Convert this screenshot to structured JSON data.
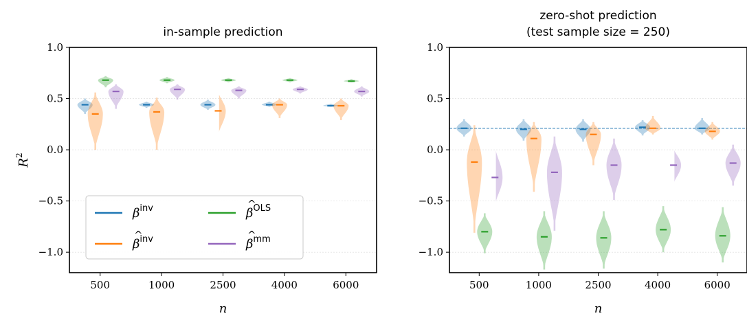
{
  "chart_data": [
    {
      "type": "violin",
      "title": "in-sample prediction",
      "subtitle": "",
      "xlabel": "n",
      "ylabel": "R",
      "ylabel_sup": "2",
      "ylim": [
        -1.2,
        1.0
      ],
      "yticks": [
        1.0,
        0.5,
        0.0,
        -0.5,
        -1.0
      ],
      "ytick_labels": [
        "1.0",
        "0.5",
        "0.0",
        "−0.5",
        "−1.0"
      ],
      "grid": true,
      "categories": [
        "500",
        "1000",
        "2500",
        "4000",
        "6000"
      ],
      "reference_line": null,
      "legend": {
        "placement": "lower-left",
        "entries": [
          {
            "series": 0,
            "base": "β",
            "hat": false,
            "sup": "inv"
          },
          {
            "series": 2,
            "base": "β",
            "hat": true,
            "sup": "OLS"
          },
          {
            "series": 1,
            "base": "β",
            "hat": true,
            "sup": "inv"
          },
          {
            "series": 3,
            "base": "β",
            "hat": true,
            "sup": "mm"
          }
        ]
      },
      "series": [
        {
          "color": "#1f77b4",
          "median": [
            0.44,
            0.44,
            0.44,
            0.44,
            0.43
          ],
          "min": [
            0.35,
            0.41,
            0.39,
            0.42,
            0.42
          ],
          "max": [
            0.5,
            0.47,
            0.49,
            0.47,
            0.45
          ]
        },
        {
          "color": "#ff7f0e",
          "median": [
            0.35,
            0.37,
            0.38,
            0.44,
            0.43
          ],
          "min": [
            0.0,
            0.0,
            0.14,
            0.31,
            0.29
          ],
          "max": [
            0.56,
            0.51,
            0.57,
            0.5,
            0.5
          ]
        },
        {
          "color": "#2ca02c",
          "median": [
            0.68,
            0.68,
            0.68,
            0.68,
            0.67
          ],
          "min": [
            0.61,
            0.65,
            0.66,
            0.66,
            0.66
          ],
          "max": [
            0.72,
            0.71,
            0.7,
            0.7,
            0.69
          ]
        },
        {
          "color": "#9467bd",
          "median": [
            0.57,
            0.59,
            0.58,
            0.59,
            0.57
          ],
          "min": [
            0.4,
            0.49,
            0.5,
            0.55,
            0.52
          ],
          "max": [
            0.64,
            0.64,
            0.62,
            0.62,
            0.62
          ]
        }
      ]
    },
    {
      "type": "violin",
      "title": "zero-shot prediction",
      "subtitle": "(test sample size = 250)",
      "xlabel": "n",
      "ylabel": "",
      "ylabel_sup": "",
      "ylim": [
        -1.2,
        1.0
      ],
      "yticks": [
        1.0,
        0.5,
        0.0,
        -0.5,
        -1.0
      ],
      "ytick_labels": [
        "1.0",
        "0.5",
        "0.0",
        "−0.5",
        "−1.0"
      ],
      "grid": true,
      "categories": [
        "500",
        "1000",
        "2500",
        "4000",
        "6000"
      ],
      "reference_line": {
        "y": 0.21,
        "color": "#1f77b4",
        "style": "dashed"
      },
      "legend": null,
      "series": [
        {
          "color": "#1f77b4",
          "median": [
            0.21,
            0.2,
            0.2,
            0.22,
            0.21
          ],
          "min": [
            0.13,
            0.09,
            0.08,
            0.14,
            0.15
          ],
          "max": [
            0.3,
            0.3,
            0.3,
            0.29,
            0.31
          ]
        },
        {
          "color": "#ff7f0e",
          "median": [
            -0.12,
            0.11,
            0.15,
            0.21,
            0.18
          ],
          "min": [
            -0.81,
            -0.41,
            -0.15,
            0.15,
            0.1
          ],
          "max": [
            0.24,
            0.27,
            0.27,
            0.33,
            0.27
          ]
        },
        {
          "color": "#2ca02c",
          "median": [
            -0.8,
            -0.85,
            -0.86,
            -0.78,
            -0.84
          ],
          "min": [
            -1.01,
            -1.17,
            -1.16,
            -1.0,
            -1.1
          ],
          "max": [
            -0.62,
            -0.6,
            -0.6,
            -0.55,
            -0.56
          ]
        },
        {
          "color": "#9467bd",
          "median": [
            -0.27,
            -0.22,
            -0.15,
            -0.15,
            -0.13
          ],
          "min": [
            -0.55,
            -0.79,
            -0.49,
            -0.34,
            -0.35
          ],
          "max": [
            0.04,
            0.13,
            0.11,
            0.02,
            0.05
          ]
        }
      ]
    }
  ]
}
